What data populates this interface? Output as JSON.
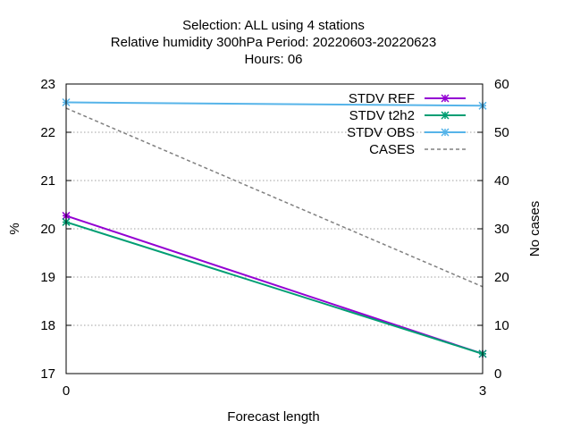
{
  "chart_data": {
    "type": "line",
    "title_lines": [
      "Selection: ALL using     4 stations",
      "Relative humidity 300hPa   Period: 20220603-20220623",
      "Hours:  06"
    ],
    "xlabel": "Forecast length",
    "ylabel": "%",
    "y2label": "No cases",
    "x": [
      0,
      3
    ],
    "x_ticks": [
      "0",
      "3"
    ],
    "xlim": [
      0,
      3
    ],
    "ylim": [
      17,
      23
    ],
    "y_ticks": [
      "17",
      "18",
      "19",
      "20",
      "21",
      "22",
      "23"
    ],
    "y2lim": [
      0,
      60
    ],
    "y2_ticks": [
      "0",
      "10",
      "20",
      "30",
      "40",
      "50",
      "60"
    ],
    "grid": true,
    "legend_position": "top-right",
    "series": [
      {
        "name": "STDV REF",
        "axis": "y",
        "color": "#9400d3",
        "marker": "star",
        "dash": "solid",
        "values": [
          20.27,
          17.41
        ]
      },
      {
        "name": "STDV t2h2",
        "axis": "y",
        "color": "#009e73",
        "marker": "star",
        "dash": "solid",
        "values": [
          20.14,
          17.41
        ]
      },
      {
        "name": "STDV OBS",
        "axis": "y",
        "color": "#56b4e9",
        "marker": "star",
        "dash": "solid",
        "values": [
          22.62,
          22.55
        ]
      },
      {
        "name": "CASES",
        "axis": "y2",
        "color": "#808080",
        "marker": "none",
        "dash": "dashed",
        "values": [
          55,
          18
        ]
      }
    ]
  }
}
